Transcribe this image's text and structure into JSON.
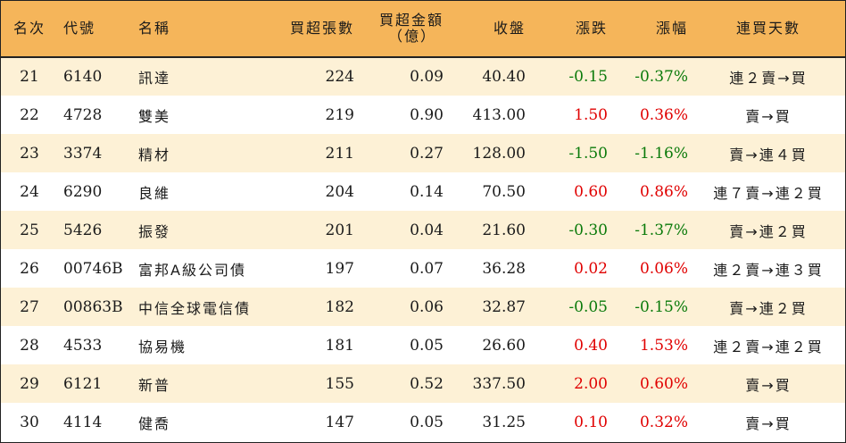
{
  "header": {
    "rank": "名次",
    "code": "代號",
    "name": "名稱",
    "net_buy_lots": "買超張數",
    "net_buy_amount_line1": "買超金額",
    "net_buy_amount_line2": "（億）",
    "close": "收盤",
    "change": "漲跌",
    "change_pct": "漲幅",
    "streak": "連買天數"
  },
  "colors": {
    "header_bg": "#f5b55a",
    "alt_row_bg": "#fdf1d6",
    "up": "#e00000",
    "down": "#0a7a0a"
  },
  "rows": [
    {
      "rank": "21",
      "code": "6140",
      "name": "訊達",
      "lots": "224",
      "amount": "0.09",
      "close": "40.40",
      "change": "-0.15",
      "pct": "-0.37%",
      "direction": "down",
      "streak": "連２賣→買"
    },
    {
      "rank": "22",
      "code": "4728",
      "name": "雙美",
      "lots": "219",
      "amount": "0.90",
      "close": "413.00",
      "change": "1.50",
      "pct": "0.36%",
      "direction": "up",
      "streak": "賣→買"
    },
    {
      "rank": "23",
      "code": "3374",
      "name": "精材",
      "lots": "211",
      "amount": "0.27",
      "close": "128.00",
      "change": "-1.50",
      "pct": "-1.16%",
      "direction": "down",
      "streak": "賣→連４買"
    },
    {
      "rank": "24",
      "code": "6290",
      "name": "良維",
      "lots": "204",
      "amount": "0.14",
      "close": "70.50",
      "change": "0.60",
      "pct": "0.86%",
      "direction": "up",
      "streak": "連７賣→連２買"
    },
    {
      "rank": "25",
      "code": "5426",
      "name": "振發",
      "lots": "201",
      "amount": "0.04",
      "close": "21.60",
      "change": "-0.30",
      "pct": "-1.37%",
      "direction": "down",
      "streak": "賣→連２買"
    },
    {
      "rank": "26",
      "code": "00746B",
      "name": "富邦A級公司債",
      "lots": "197",
      "amount": "0.07",
      "close": "36.28",
      "change": "0.02",
      "pct": "0.06%",
      "direction": "up",
      "streak": "連２賣→連３買"
    },
    {
      "rank": "27",
      "code": "00863B",
      "name": "中信全球電信債",
      "lots": "182",
      "amount": "0.06",
      "close": "32.87",
      "change": "-0.05",
      "pct": "-0.15%",
      "direction": "down",
      "streak": "賣→連２買"
    },
    {
      "rank": "28",
      "code": "4533",
      "name": "協易機",
      "lots": "181",
      "amount": "0.05",
      "close": "26.60",
      "change": "0.40",
      "pct": "1.53%",
      "direction": "up",
      "streak": "連２賣→連２買"
    },
    {
      "rank": "29",
      "code": "6121",
      "name": "新普",
      "lots": "155",
      "amount": "0.52",
      "close": "337.50",
      "change": "2.00",
      "pct": "0.60%",
      "direction": "up",
      "streak": "賣→買"
    },
    {
      "rank": "30",
      "code": "4114",
      "name": "健喬",
      "lots": "147",
      "amount": "0.05",
      "close": "31.25",
      "change": "0.10",
      "pct": "0.32%",
      "direction": "up",
      "streak": "賣→買"
    }
  ]
}
